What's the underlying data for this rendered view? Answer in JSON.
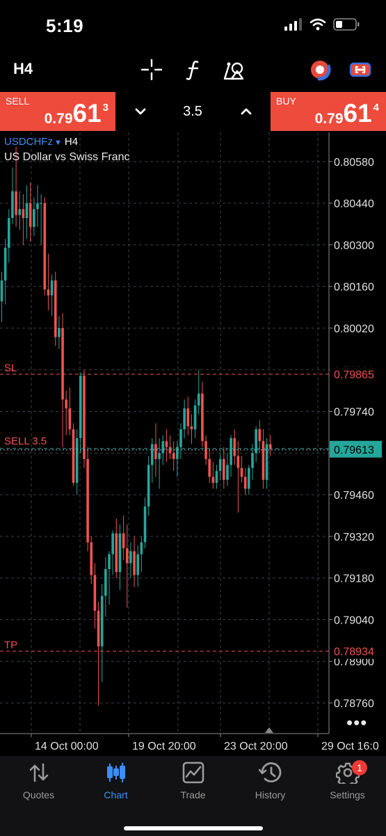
{
  "status": {
    "time": "5:19"
  },
  "toolbar": {
    "timeframe": "H4",
    "icons": [
      "crosshair-icon",
      "indicators-icon",
      "objects-icon",
      "connection-status-icon",
      "promo-icon"
    ]
  },
  "trade": {
    "sell_label": "SELL",
    "sell_price": {
      "main": "0.79",
      "big": "61",
      "sup": "3"
    },
    "buy_label": "BUY",
    "buy_price": {
      "main": "0.79",
      "big": "61",
      "sup": "4"
    },
    "volume": "3.5"
  },
  "chart": {
    "symbol": "USDCHFz",
    "timeframe": "H4",
    "description": "US Dollar vs Swiss Franc",
    "sl_label": "SL",
    "sell_label": "SELL 3.5",
    "tp_label": "TP",
    "sl_price": "0.79865",
    "current_price": "0.79613",
    "tp_price": "0.78934",
    "more_label": "•••"
  },
  "chart_data": {
    "type": "candlestick",
    "symbol": "USDCHFz",
    "timeframe": "H4",
    "y_ticks": [
      0.8058,
      0.8044,
      0.803,
      0.8016,
      0.8002,
      0.7988,
      0.7974,
      0.796,
      0.7946,
      0.7932,
      0.7918,
      0.7904,
      0.789,
      0.7876
    ],
    "y_tick_labels": [
      "0.80580",
      "0.80440",
      "0.80300",
      "0.80160",
      "0.80020",
      "0.79880",
      "0.79740",
      "0.79600",
      "0.79460",
      "0.79320",
      "0.79180",
      "0.79040",
      "0.78900",
      "0.78760"
    ],
    "x_tick_labels": [
      "14 Oct 00:00",
      "19 Oct 20:00",
      "23 Oct 20:00",
      "29 Oct 16:0"
    ],
    "levels": [
      {
        "name": "SL",
        "price": 0.79865
      },
      {
        "name": "SELL 3.5",
        "price": 0.79613
      },
      {
        "name": "TP",
        "price": 0.78934
      }
    ],
    "ylim": [
      0.78657,
      0.80678
    ],
    "grid": true,
    "up_color": "#26a69a",
    "down_color": "#ef5350",
    "candles": [
      [
        0.8011,
        0.8021,
        0.8004,
        0.8018
      ],
      [
        0.8018,
        0.8032,
        0.801,
        0.8029
      ],
      [
        0.8029,
        0.8042,
        0.8024,
        0.8039
      ],
      [
        0.8039,
        0.8056,
        0.8037,
        0.8048
      ],
      [
        0.8048,
        0.8063,
        0.8036,
        0.804
      ],
      [
        0.804,
        0.8048,
        0.8035,
        0.8042
      ],
      [
        0.8042,
        0.8047,
        0.803,
        0.8039
      ],
      [
        0.8039,
        0.805,
        0.8032,
        0.8044
      ],
      [
        0.8044,
        0.8051,
        0.8031,
        0.8036
      ],
      [
        0.8036,
        0.8046,
        0.8033,
        0.8042
      ],
      [
        0.8042,
        0.805,
        0.8036,
        0.8044
      ],
      [
        0.8044,
        0.8047,
        0.803,
        0.8044
      ],
      [
        0.8044,
        0.8046,
        0.8013,
        0.8015
      ],
      [
        0.8015,
        0.8027,
        0.8008,
        0.8013
      ],
      [
        0.8013,
        0.802,
        0.8006,
        0.8018
      ],
      [
        0.8018,
        0.8021,
        0.7996,
        0.7999
      ],
      [
        0.7999,
        0.8006,
        0.7995,
        0.8002
      ],
      [
        0.8002,
        0.8007,
        0.7962,
        0.7978
      ],
      [
        0.7978,
        0.7981,
        0.7966,
        0.7975
      ],
      [
        0.7975,
        0.7982,
        0.7966,
        0.7968
      ],
      [
        0.7968,
        0.797,
        0.7949,
        0.795
      ],
      [
        0.795,
        0.7968,
        0.7946,
        0.7965
      ],
      [
        0.7965,
        0.7987,
        0.796,
        0.7986
      ],
      [
        0.7986,
        0.7988,
        0.7955,
        0.7958
      ],
      [
        0.7958,
        0.7962,
        0.7927,
        0.793
      ],
      [
        0.793,
        0.7932,
        0.7916,
        0.7919
      ],
      [
        0.7919,
        0.7923,
        0.7901,
        0.7907
      ],
      [
        0.7907,
        0.791,
        0.7875,
        0.7895
      ],
      [
        0.7895,
        0.7916,
        0.7883,
        0.7912
      ],
      [
        0.7912,
        0.7925,
        0.7905,
        0.7921
      ],
      [
        0.7921,
        0.7927,
        0.7909,
        0.7926
      ],
      [
        0.7926,
        0.7934,
        0.7919,
        0.7933
      ],
      [
        0.7933,
        0.7938,
        0.7918,
        0.792
      ],
      [
        0.792,
        0.7936,
        0.7914,
        0.7933
      ],
      [
        0.7933,
        0.7939,
        0.7924,
        0.7928
      ],
      [
        0.7928,
        0.7936,
        0.7908,
        0.7923
      ],
      [
        0.7923,
        0.793,
        0.7918,
        0.7927
      ],
      [
        0.7927,
        0.7932,
        0.7915,
        0.7919
      ],
      [
        0.7919,
        0.7929,
        0.7915,
        0.7926
      ],
      [
        0.7926,
        0.7932,
        0.792,
        0.793
      ],
      [
        0.793,
        0.7945,
        0.7928,
        0.7942
      ],
      [
        0.7942,
        0.7959,
        0.7939,
        0.7956
      ],
      [
        0.7956,
        0.7965,
        0.795,
        0.7963
      ],
      [
        0.7963,
        0.797,
        0.7952,
        0.7958
      ],
      [
        0.7958,
        0.7965,
        0.7948,
        0.796
      ],
      [
        0.796,
        0.7966,
        0.7956,
        0.7964
      ],
      [
        0.7964,
        0.7968,
        0.7957,
        0.7962
      ],
      [
        0.7962,
        0.7966,
        0.7958,
        0.796
      ],
      [
        0.796,
        0.7964,
        0.7954,
        0.7958
      ],
      [
        0.7958,
        0.7964,
        0.7952,
        0.7962
      ],
      [
        0.7962,
        0.797,
        0.7958,
        0.7968
      ],
      [
        0.7968,
        0.7978,
        0.7965,
        0.7975
      ],
      [
        0.7975,
        0.7979,
        0.7966,
        0.7969
      ],
      [
        0.7969,
        0.7973,
        0.7963,
        0.7968
      ],
      [
        0.7968,
        0.7978,
        0.7965,
        0.7976
      ],
      [
        0.7976,
        0.7988,
        0.7973,
        0.798
      ],
      [
        0.798,
        0.7984,
        0.7962,
        0.7964
      ],
      [
        0.7964,
        0.7966,
        0.7956,
        0.7958
      ],
      [
        0.7958,
        0.7961,
        0.795,
        0.7952
      ],
      [
        0.7952,
        0.7957,
        0.7948,
        0.795
      ],
      [
        0.795,
        0.7956,
        0.7948,
        0.7954
      ],
      [
        0.7954,
        0.796,
        0.7951,
        0.7958
      ],
      [
        0.7958,
        0.7962,
        0.7948,
        0.7951
      ],
      [
        0.7951,
        0.796,
        0.7949,
        0.7956
      ],
      [
        0.7956,
        0.7966,
        0.7952,
        0.7965
      ],
      [
        0.7965,
        0.7968,
        0.7956,
        0.7959
      ],
      [
        0.7959,
        0.7964,
        0.794,
        0.7955
      ],
      [
        0.7955,
        0.7959,
        0.795,
        0.7952
      ],
      [
        0.7952,
        0.7955,
        0.7946,
        0.7948
      ],
      [
        0.7948,
        0.7956,
        0.7946,
        0.7955
      ],
      [
        0.7955,
        0.7963,
        0.7951,
        0.796
      ],
      [
        0.796,
        0.7969,
        0.7957,
        0.7968
      ],
      [
        0.7968,
        0.7971,
        0.796,
        0.7964
      ],
      [
        0.7964,
        0.7968,
        0.7948,
        0.7951
      ],
      [
        0.7951,
        0.7965,
        0.7948,
        0.7963
      ],
      [
        0.7963,
        0.7966,
        0.7959,
        0.79613
      ]
    ]
  },
  "tabs": [
    {
      "label": "Quotes",
      "icon": "quotes-icon",
      "active": false
    },
    {
      "label": "Chart",
      "icon": "chart-icon",
      "active": true
    },
    {
      "label": "Trade",
      "icon": "trade-icon",
      "active": false
    },
    {
      "label": "History",
      "icon": "history-icon",
      "active": false
    },
    {
      "label": "Settings",
      "icon": "settings-icon",
      "active": false,
      "badge": "1"
    }
  ],
  "colors": {
    "background": "#000000",
    "sell_button": "#ed4b3c",
    "buy_button": "#ed4b3c",
    "bull_candle": "#26a69a",
    "bear_candle": "#ef5350",
    "stop_loss": "#ef5350",
    "take_profit": "#ef5350",
    "current_price": "#26a69a",
    "accent": "#3e8ef7"
  }
}
